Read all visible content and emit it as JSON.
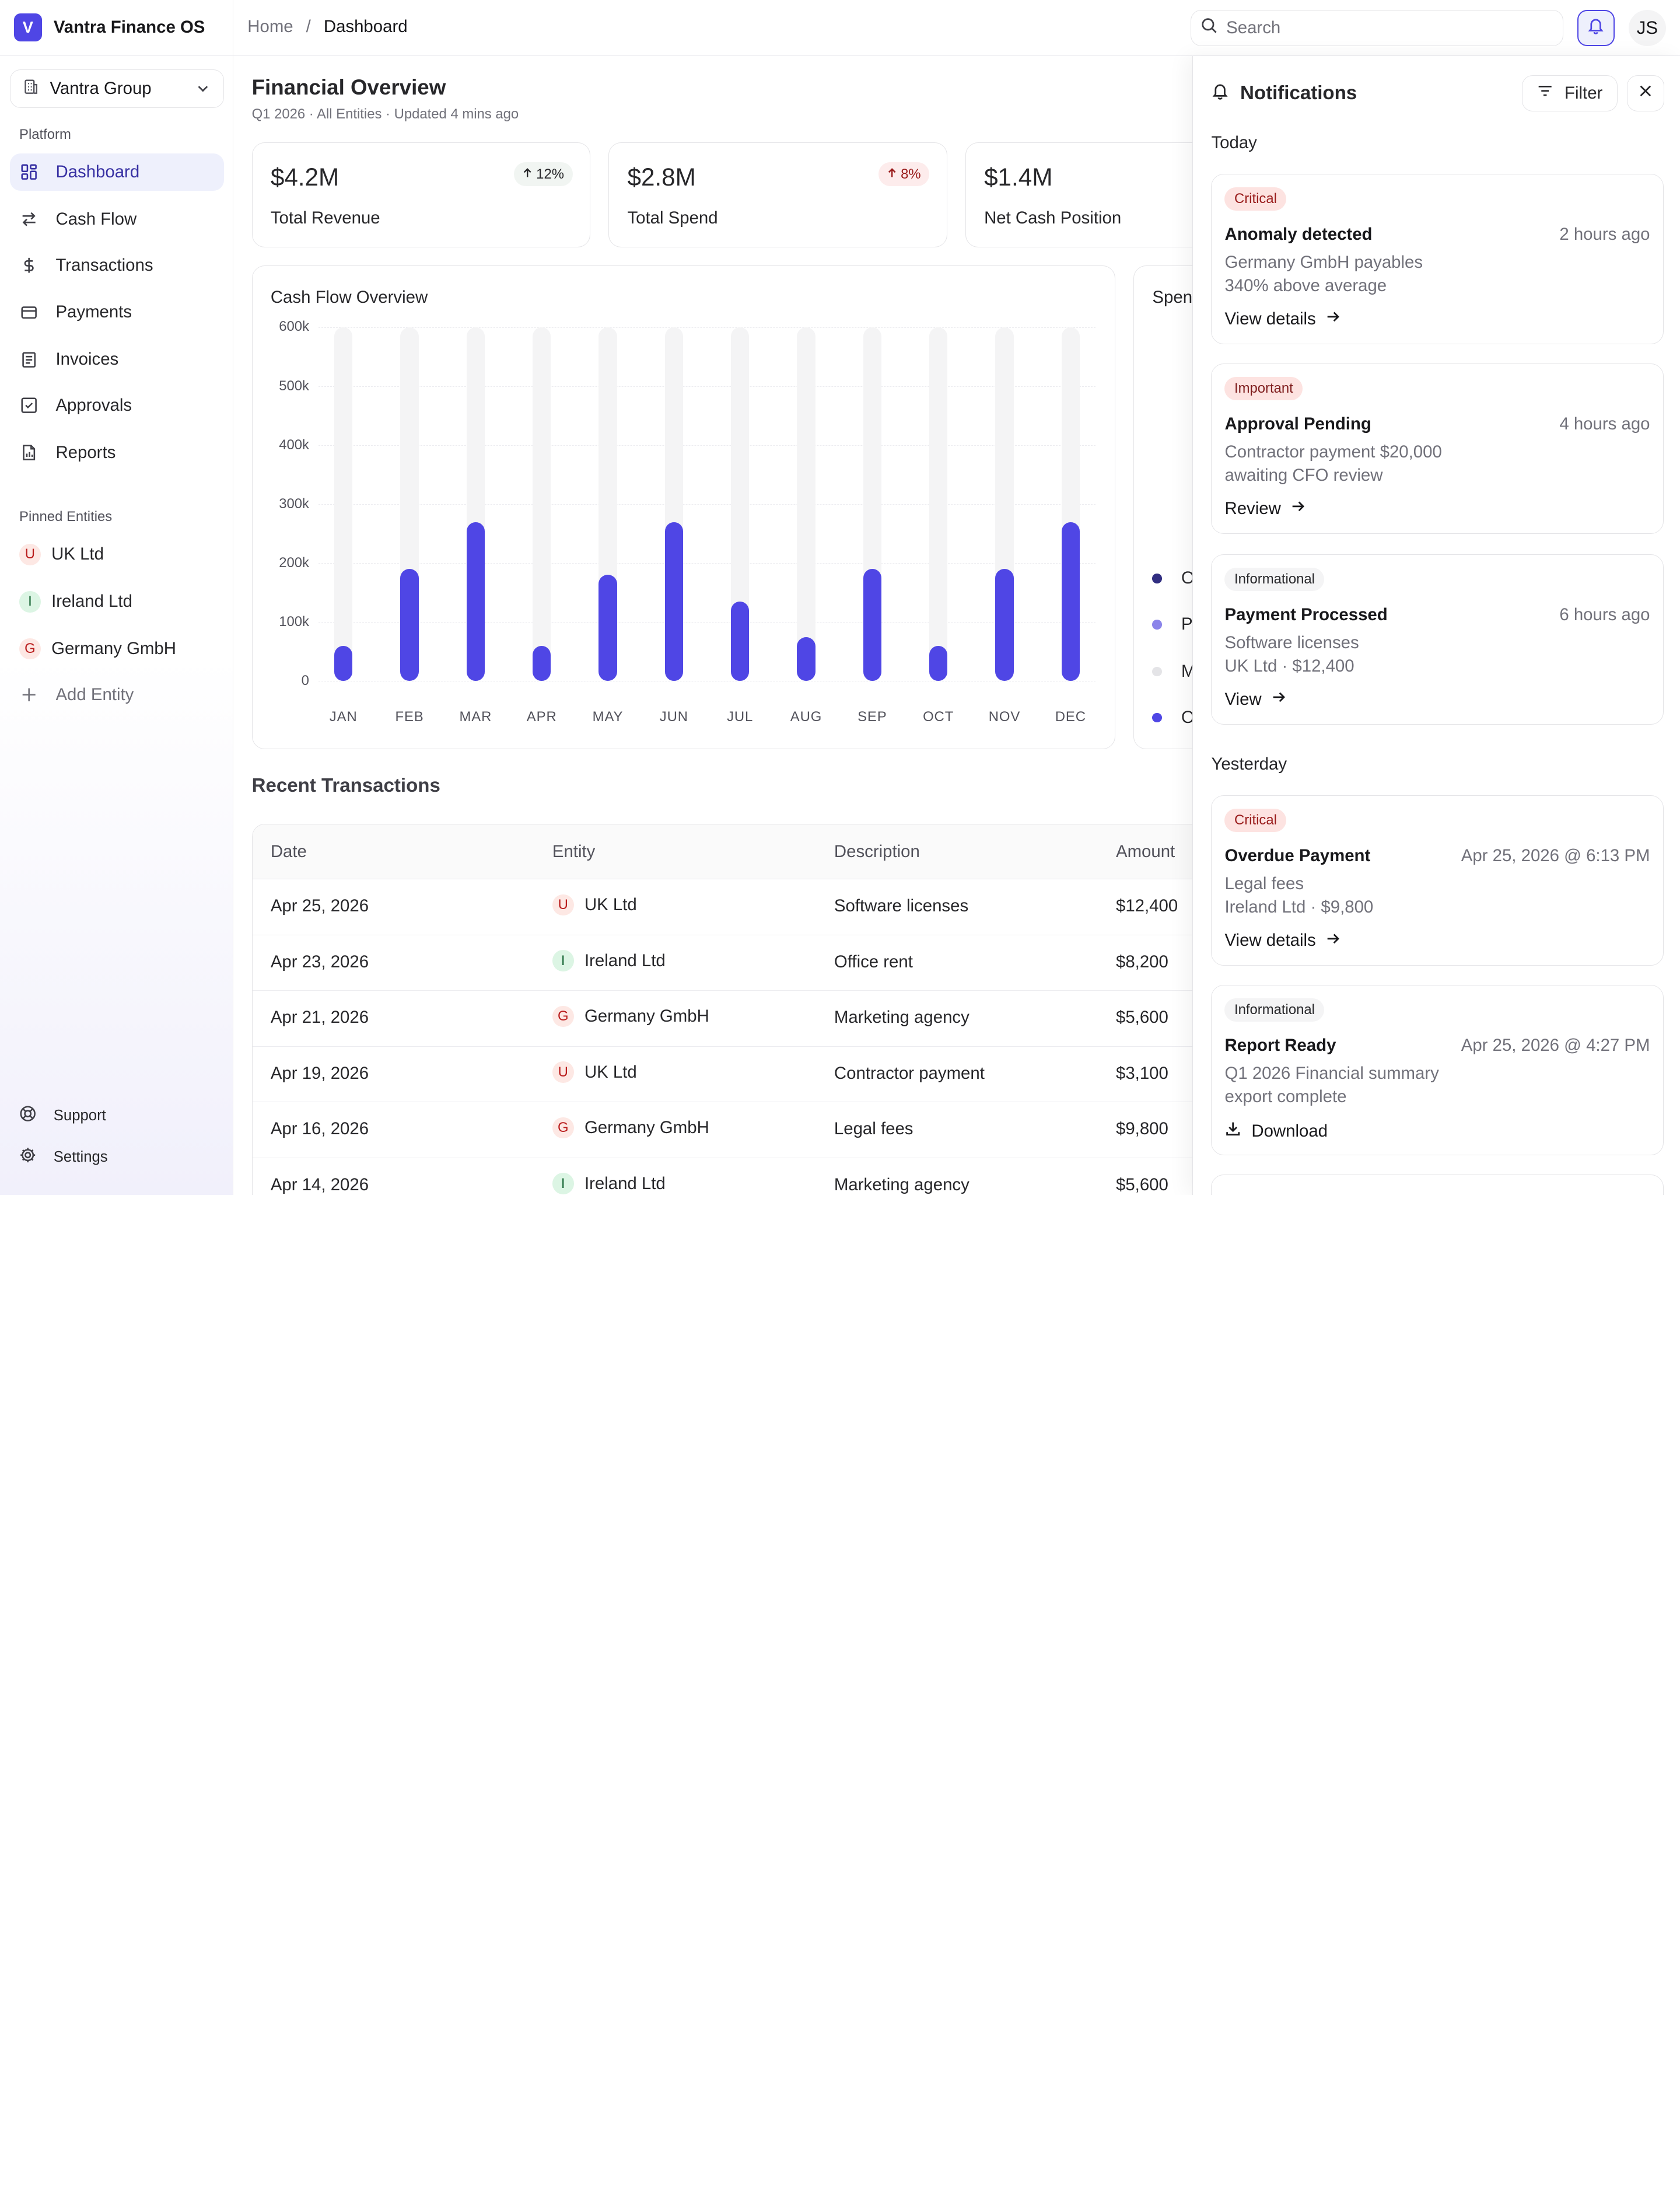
{
  "app": {
    "name": "Vantra Finance OS",
    "logo_letter": "V"
  },
  "breadcrumb": {
    "home": "Home",
    "sep": "/",
    "current": "Dashboard"
  },
  "search": {
    "placeholder": "Search"
  },
  "user": {
    "initials": "JS"
  },
  "org_select": {
    "value": "Vantra Group"
  },
  "sidebar": {
    "platform_label": "Platform",
    "nav": [
      {
        "label": "Dashboard",
        "icon": "dashboard-icon",
        "active": true
      },
      {
        "label": "Cash Flow",
        "icon": "arrows-exchange-icon"
      },
      {
        "label": "Transactions",
        "icon": "dollar-icon"
      },
      {
        "label": "Payments",
        "icon": "credit-card-icon"
      },
      {
        "label": "Invoices",
        "icon": "receipt-icon"
      },
      {
        "label": "Approvals",
        "icon": "check-square-icon"
      },
      {
        "label": "Reports",
        "icon": "report-icon"
      }
    ],
    "pinned_label": "Pinned Entities",
    "entities": [
      {
        "label": "UK Ltd",
        "initial": "U"
      },
      {
        "label": "Ireland Ltd",
        "initial": "I"
      },
      {
        "label": "Germany GmbH",
        "initial": "G"
      }
    ],
    "add_entity": "Add Entity",
    "support": "Support",
    "settings": "Settings"
  },
  "overview": {
    "title": "Financial Overview",
    "subtitle": "Q1 2026 · All Entities · Updated 4 mins ago"
  },
  "kpis": [
    {
      "value": "$4.2M",
      "label": "Total Revenue",
      "delta": "12%",
      "direction": "up"
    },
    {
      "value": "$2.8M",
      "label": "Total Spend",
      "delta": "8%",
      "direction": "up-negative"
    },
    {
      "value": "$1.4M",
      "label": "Net Cash Position"
    }
  ],
  "chart_data": {
    "type": "bar",
    "title": "Cash Flow Overview",
    "categories": [
      "JAN",
      "FEB",
      "MAR",
      "APR",
      "MAY",
      "JUN",
      "JUL",
      "AUG",
      "SEP",
      "OCT",
      "NOV",
      "DEC"
    ],
    "values": [
      60000,
      190000,
      270000,
      60000,
      180000,
      270000,
      135000,
      75000,
      190000,
      60000,
      190000,
      270000
    ],
    "background_values": [
      600000,
      600000,
      600000,
      600000,
      600000,
      600000,
      600000,
      600000,
      600000,
      600000,
      600000,
      600000
    ],
    "y_tick_labels": [
      "600k",
      "500k",
      "400k",
      "300k",
      "200k",
      "100k",
      "0"
    ],
    "ylim": [
      0,
      600000
    ],
    "grid": true,
    "bar_color": "#4f46e5",
    "track_color": "#f4f4f5"
  },
  "spend_card": {
    "title": "Spen",
    "legend": [
      {
        "label": "O",
        "color": "#312e81"
      },
      {
        "label": "P",
        "color": "#8b84ea"
      },
      {
        "label": "M",
        "color": "#e4e4e7"
      },
      {
        "label": "O",
        "color": "#4f46e5"
      }
    ]
  },
  "transactions": {
    "title": "Recent Transactions",
    "columns": [
      "Date",
      "Entity",
      "Description",
      "Amount"
    ],
    "rows": [
      {
        "date": "Apr 25, 2026",
        "initial": "U",
        "entity": "UK Ltd",
        "description": "Software licenses",
        "amount": "$12,400"
      },
      {
        "date": "Apr 23, 2026",
        "initial": "I",
        "entity": "Ireland Ltd",
        "description": "Office rent",
        "amount": "$8,200"
      },
      {
        "date": "Apr 21, 2026",
        "initial": "G",
        "entity": "Germany GmbH",
        "description": "Marketing agency",
        "amount": "$5,600"
      },
      {
        "date": "Apr 19, 2026",
        "initial": "U",
        "entity": "UK Ltd",
        "description": "Contractor payment",
        "amount": "$3,100"
      },
      {
        "date": "Apr 16, 2026",
        "initial": "G",
        "entity": "Germany GmbH",
        "description": "Legal fees",
        "amount": "$9,800"
      },
      {
        "date": "Apr 14, 2026",
        "initial": "I",
        "entity": "Ireland Ltd",
        "description": "Marketing agency",
        "amount": "$5,600"
      }
    ]
  },
  "notifications": {
    "title": "Notifications",
    "filter": "Filter",
    "today_label": "Today",
    "yesterday_label": "Yesterday",
    "items": [
      {
        "severity": "Critical",
        "kind": "critical",
        "title": "Anomaly detected",
        "time": "2 hours ago",
        "line1": "Germany GmbH payables",
        "line2": "340% above average",
        "action": "View details"
      },
      {
        "severity": "Important",
        "kind": "important",
        "title": "Approval Pending",
        "time": "4 hours ago",
        "line1": "Contractor payment $20,000",
        "line2": "awaiting CFO review",
        "action": "Review"
      },
      {
        "severity": "Informational",
        "kind": "info",
        "title": "Payment Processed",
        "time": "6 hours ago",
        "line1": "Software licenses",
        "line2": "UK Ltd · $12,400",
        "action": "View"
      },
      {
        "severity": "Critical",
        "kind": "critical",
        "title": "Overdue Payment",
        "time": "Apr 25, 2026 @ 6:13 PM",
        "line1": "Legal fees",
        "line2": "Ireland Ltd · $9,800",
        "action": "View details"
      },
      {
        "severity": "Informational",
        "kind": "info",
        "title": "Report Ready",
        "time": "Apr 25, 2026 @ 4:27 PM",
        "line1": "Q1 2026 Financial summary",
        "line2": "export complete",
        "action": "Download"
      }
    ]
  },
  "colors": {
    "accent": "#4f46e5",
    "entity_u_bg": "#fde8e4",
    "entity_u_fg": "#b91c1c",
    "entity_i_bg": "#dcf5e4",
    "entity_i_fg": "#166534",
    "entity_g_bg": "#fde8e4",
    "entity_g_fg": "#b91c1c"
  }
}
